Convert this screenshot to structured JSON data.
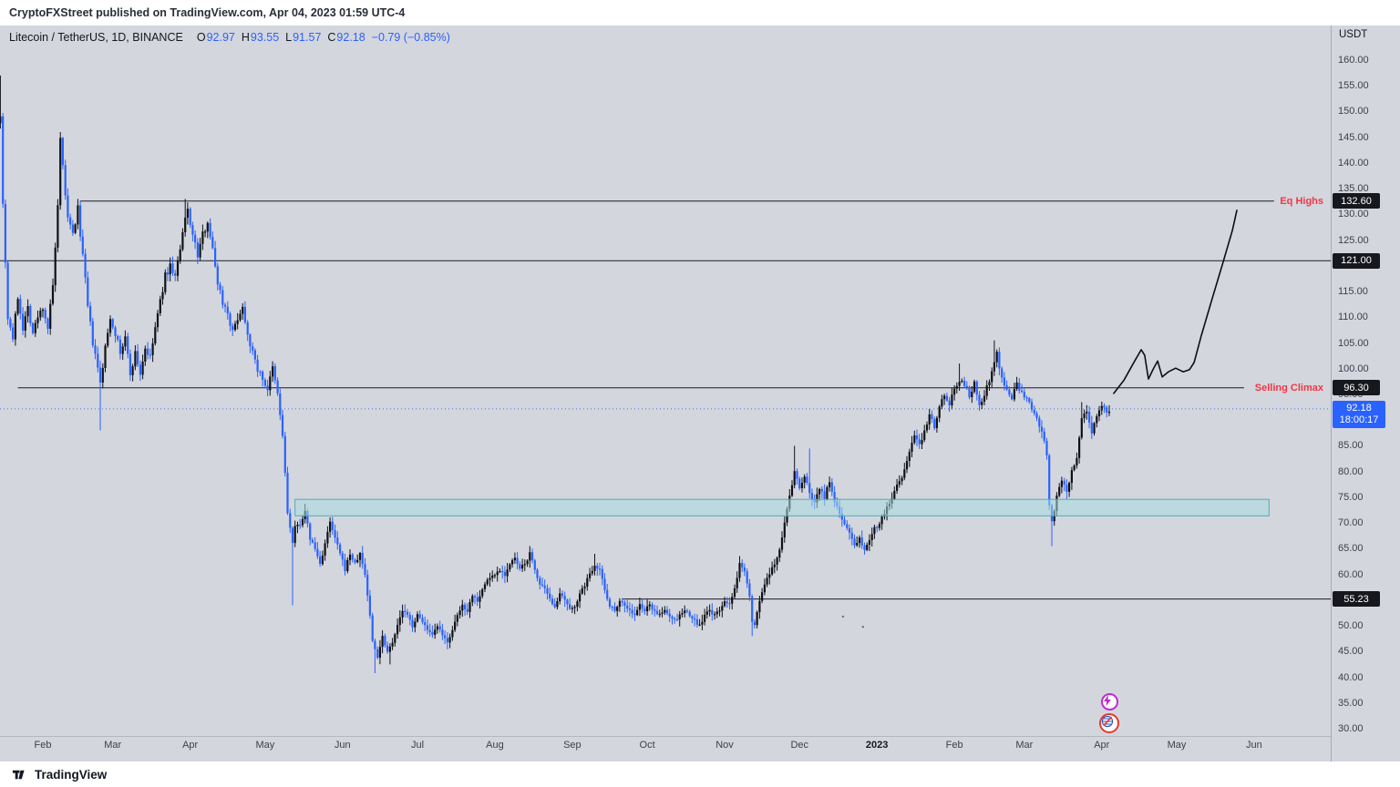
{
  "top_bar": {
    "attribution": "CryptoFXStreet published on TradingView.com, Apr 04, 2023 01:59 UTC-4"
  },
  "header": {
    "symbol_title": "Litecoin / TetherUS, 1D, BINANCE",
    "ohlc": {
      "open_label": "O",
      "open": "92.97",
      "high_label": "H",
      "high": "93.55",
      "low_label": "L",
      "low": "91.57",
      "close_label": "C",
      "close": "92.18",
      "change": "−0.79 (−0.85%)"
    }
  },
  "price_scale": {
    "unit": "USDT",
    "max": 160,
    "min": 30,
    "step": 5,
    "badges": [
      {
        "label": "132.60",
        "price": 132.6,
        "type": "level"
      },
      {
        "label": "121.00",
        "price": 121.0,
        "type": "level"
      },
      {
        "label": "96.30",
        "price": 96.3,
        "type": "level"
      },
      {
        "label": "55.23",
        "price": 55.23,
        "type": "level"
      },
      {
        "label": "92.18",
        "price": 92.18,
        "countdown": "18:00:17",
        "type": "current"
      }
    ]
  },
  "annotations": [
    {
      "text": "Eq Highs",
      "price": 132.6
    },
    {
      "text": "Selling Climax",
      "price": 96.3
    }
  ],
  "time_scale": {
    "labels": [
      {
        "text": "Feb",
        "day": 0
      },
      {
        "text": "Mar",
        "day": 28
      },
      {
        "text": "Apr",
        "day": 59
      },
      {
        "text": "May",
        "day": 89
      },
      {
        "text": "Jun",
        "day": 120
      },
      {
        "text": "Jul",
        "day": 150
      },
      {
        "text": "Aug",
        "day": 181
      },
      {
        "text": "Sep",
        "day": 212
      },
      {
        "text": "Oct",
        "day": 242
      },
      {
        "text": "Nov",
        "day": 273
      },
      {
        "text": "Dec",
        "day": 303
      },
      {
        "text": "2023",
        "day": 334,
        "emph": true
      },
      {
        "text": "Feb",
        "day": 365
      },
      {
        "text": "Mar",
        "day": 393
      },
      {
        "text": "Apr",
        "day": 424
      },
      {
        "text": "May",
        "day": 454
      },
      {
        "text": "Jun",
        "day": 485
      }
    ]
  },
  "footer": {
    "brand": "TradingView"
  },
  "chart_data": {
    "type": "candlestick",
    "symbol": "LTCUSDT",
    "exchange": "BINANCE",
    "interval": "1D",
    "ylim": [
      30,
      160
    ],
    "x_days_range": [
      -17,
      427
    ],
    "current_price": 92.18,
    "levels": [
      {
        "price": 132.6,
        "from_day": 15,
        "to_day": 493,
        "label": "Eq Highs"
      },
      {
        "price": 121.0,
        "from_day": -18,
        "to_day": 516
      },
      {
        "price": 96.3,
        "from_day": -10,
        "to_day": 481,
        "label": "Selling Climax"
      },
      {
        "price": 55.23,
        "from_day": 232,
        "to_day": 516
      }
    ],
    "band": {
      "top": 74.6,
      "bottom": 71.4,
      "from_day": 101,
      "to_day": 491
    },
    "projection": [
      [
        428.8,
        95.2
      ],
      [
        432.8,
        97.7
      ],
      [
        436.5,
        100.9
      ],
      [
        439.8,
        103.7
      ],
      [
        441.2,
        102.6
      ],
      [
        442.7,
        98.0
      ],
      [
        444.5,
        99.8
      ],
      [
        446.4,
        101.5
      ],
      [
        448.2,
        98.4
      ],
      [
        450.7,
        99.4
      ],
      [
        453.6,
        100.1
      ],
      [
        456.6,
        99.4
      ],
      [
        459.1,
        99.8
      ],
      [
        461.0,
        101.2
      ],
      [
        463.9,
        106.5
      ],
      [
        468.2,
        113.6
      ],
      [
        472.6,
        120.7
      ],
      [
        476.3,
        126.9
      ],
      [
        478.1,
        130.8
      ]
    ],
    "marks": [
      [
        320.4,
        51.8
      ],
      [
        328.4,
        49.8
      ]
    ],
    "price_path": [
      [
        -17,
        150
      ],
      [
        -16,
        132
      ],
      [
        -14,
        110
      ],
      [
        -12,
        106
      ],
      [
        -10,
        114
      ],
      [
        -8,
        108
      ],
      [
        -6,
        112
      ],
      [
        -4,
        107
      ],
      [
        -2,
        110
      ],
      [
        0,
        112
      ],
      [
        2,
        108
      ],
      [
        4,
        116
      ],
      [
        6,
        131
      ],
      [
        7,
        144
      ],
      [
        8,
        139
      ],
      [
        9,
        134
      ],
      [
        10,
        129
      ],
      [
        12,
        126
      ],
      [
        14,
        131
      ],
      [
        16,
        122
      ],
      [
        18,
        112
      ],
      [
        20,
        105
      ],
      [
        22,
        100
      ],
      [
        23,
        97
      ],
      [
        25,
        104
      ],
      [
        27,
        110
      ],
      [
        29,
        107
      ],
      [
        31,
        103
      ],
      [
        33,
        106
      ],
      [
        35,
        99
      ],
      [
        37,
        103
      ],
      [
        39,
        99
      ],
      [
        41,
        104
      ],
      [
        43,
        102
      ],
      [
        45,
        108
      ],
      [
        47,
        113
      ],
      [
        49,
        118
      ],
      [
        51,
        120
      ],
      [
        53,
        118
      ],
      [
        55,
        123
      ],
      [
        57,
        129
      ],
      [
        58,
        131
      ],
      [
        60,
        126
      ],
      [
        62,
        122
      ],
      [
        64,
        126
      ],
      [
        66,
        129
      ],
      [
        68,
        123
      ],
      [
        70,
        117
      ],
      [
        72,
        113
      ],
      [
        74,
        111
      ],
      [
        76,
        107
      ],
      [
        78,
        110
      ],
      [
        80,
        112
      ],
      [
        82,
        107
      ],
      [
        84,
        103
      ],
      [
        86,
        100
      ],
      [
        88,
        98
      ],
      [
        90,
        96
      ],
      [
        92,
        100
      ],
      [
        94,
        95
      ],
      [
        96,
        87
      ],
      [
        98,
        72
      ],
      [
        100,
        66
      ],
      [
        101,
        69
      ],
      [
        103,
        70
      ],
      [
        105,
        72
      ],
      [
        107,
        67
      ],
      [
        109,
        65
      ],
      [
        111,
        62
      ],
      [
        113,
        66
      ],
      [
        115,
        70
      ],
      [
        117,
        67
      ],
      [
        119,
        64
      ],
      [
        121,
        61
      ],
      [
        123,
        64
      ],
      [
        125,
        62
      ],
      [
        127,
        64
      ],
      [
        129,
        60
      ],
      [
        131,
        52
      ],
      [
        132,
        47
      ],
      [
        134,
        44
      ],
      [
        136,
        48
      ],
      [
        138,
        45
      ],
      [
        140,
        47
      ],
      [
        142,
        50
      ],
      [
        144,
        53
      ],
      [
        146,
        52
      ],
      [
        148,
        50
      ],
      [
        150,
        52
      ],
      [
        152,
        51
      ],
      [
        154,
        49
      ],
      [
        156,
        48
      ],
      [
        158,
        50
      ],
      [
        160,
        48
      ],
      [
        162,
        47
      ],
      [
        164,
        49
      ],
      [
        166,
        52
      ],
      [
        168,
        54
      ],
      [
        170,
        53
      ],
      [
        172,
        56
      ],
      [
        174,
        55
      ],
      [
        176,
        57
      ],
      [
        178,
        59
      ],
      [
        181,
        60
      ],
      [
        183,
        61
      ],
      [
        185,
        60
      ],
      [
        187,
        62
      ],
      [
        189,
        63
      ],
      [
        191,
        61
      ],
      [
        193,
        62
      ],
      [
        195,
        64
      ],
      [
        197,
        61
      ],
      [
        199,
        58
      ],
      [
        201,
        57
      ],
      [
        203,
        55
      ],
      [
        205,
        54
      ],
      [
        207,
        56
      ],
      [
        209,
        55
      ],
      [
        211,
        53
      ],
      [
        213,
        54
      ],
      [
        215,
        56
      ],
      [
        217,
        58
      ],
      [
        219,
        60
      ],
      [
        221,
        62
      ],
      [
        223,
        61
      ],
      [
        225,
        57
      ],
      [
        227,
        54
      ],
      [
        229,
        53
      ],
      [
        231,
        55
      ],
      [
        233,
        54
      ],
      [
        235,
        53
      ],
      [
        237,
        52
      ],
      [
        239,
        54
      ],
      [
        241,
        53
      ],
      [
        243,
        54
      ],
      [
        245,
        53
      ],
      [
        247,
        52
      ],
      [
        249,
        53
      ],
      [
        251,
        52
      ],
      [
        253,
        51
      ],
      [
        255,
        52
      ],
      [
        257,
        53
      ],
      [
        259,
        52
      ],
      [
        261,
        51
      ],
      [
        263,
        50
      ],
      [
        265,
        52
      ],
      [
        267,
        53
      ],
      [
        269,
        52
      ],
      [
        271,
        53
      ],
      [
        273,
        55
      ],
      [
        275,
        54
      ],
      [
        277,
        57
      ],
      [
        279,
        62
      ],
      [
        281,
        61
      ],
      [
        283,
        56
      ],
      [
        284,
        51
      ],
      [
        285,
        50
      ],
      [
        287,
        55
      ],
      [
        289,
        58
      ],
      [
        291,
        60
      ],
      [
        293,
        62
      ],
      [
        295,
        65
      ],
      [
        297,
        70
      ],
      [
        299,
        75
      ],
      [
        301,
        80
      ],
      [
        303,
        77
      ],
      [
        305,
        79
      ],
      [
        307,
        76
      ],
      [
        309,
        74
      ],
      [
        311,
        77
      ],
      [
        313,
        75
      ],
      [
        315,
        78
      ],
      [
        317,
        74
      ],
      [
        319,
        72
      ],
      [
        321,
        70
      ],
      [
        323,
        68
      ],
      [
        325,
        66
      ],
      [
        327,
        67
      ],
      [
        329,
        65
      ],
      [
        331,
        67
      ],
      [
        333,
        69
      ],
      [
        335,
        70
      ],
      [
        337,
        72
      ],
      [
        339,
        74
      ],
      [
        341,
        76
      ],
      [
        343,
        78
      ],
      [
        345,
        80
      ],
      [
        347,
        84
      ],
      [
        349,
        87
      ],
      [
        351,
        85
      ],
      [
        353,
        88
      ],
      [
        355,
        91
      ],
      [
        357,
        89
      ],
      [
        359,
        93
      ],
      [
        361,
        95
      ],
      [
        363,
        93
      ],
      [
        365,
        96
      ],
      [
        367,
        98
      ],
      [
        369,
        97
      ],
      [
        371,
        95
      ],
      [
        373,
        97
      ],
      [
        375,
        93
      ],
      [
        377,
        95
      ],
      [
        379,
        98
      ],
      [
        381,
        101
      ],
      [
        382,
        103
      ],
      [
        384,
        98
      ],
      [
        386,
        96
      ],
      [
        388,
        94
      ],
      [
        390,
        97
      ],
      [
        392,
        95
      ],
      [
        394,
        94
      ],
      [
        396,
        92
      ],
      [
        398,
        90
      ],
      [
        400,
        88
      ],
      [
        402,
        83
      ],
      [
        403,
        73
      ],
      [
        404,
        70
      ],
      [
        406,
        75
      ],
      [
        408,
        78
      ],
      [
        410,
        76
      ],
      [
        412,
        80
      ],
      [
        414,
        83
      ],
      [
        416,
        90
      ],
      [
        418,
        92
      ],
      [
        420,
        88
      ],
      [
        422,
        91
      ],
      [
        424,
        93
      ],
      [
        426,
        91
      ],
      [
        427,
        92.2
      ]
    ],
    "extremes": [
      [
        -17,
        "h",
        157
      ],
      [
        7,
        "h",
        146
      ],
      [
        14,
        "h",
        133
      ],
      [
        23,
        "l",
        88
      ],
      [
        57,
        "h",
        133
      ],
      [
        100,
        "l",
        54
      ],
      [
        133,
        "l",
        40.8
      ],
      [
        139,
        "l",
        42.5
      ],
      [
        221,
        "h",
        64
      ],
      [
        284,
        "l",
        48
      ],
      [
        301,
        "h",
        85
      ],
      [
        307,
        "h",
        84.5
      ],
      [
        367,
        "h",
        101
      ],
      [
        381,
        "h",
        105.5
      ],
      [
        404,
        "l",
        65.5
      ],
      [
        416,
        "h",
        93.5
      ]
    ],
    "colors": {
      "up": "#0e1116",
      "down": "#2962ff",
      "level_line": "#1a1d24",
      "annotation": "#f23645",
      "band_fill": "#a8dde0",
      "band_stroke": "#42a6b2",
      "current": "#2962ff",
      "background": "#d4d6dd",
      "projection": "#0c0f14"
    }
  }
}
